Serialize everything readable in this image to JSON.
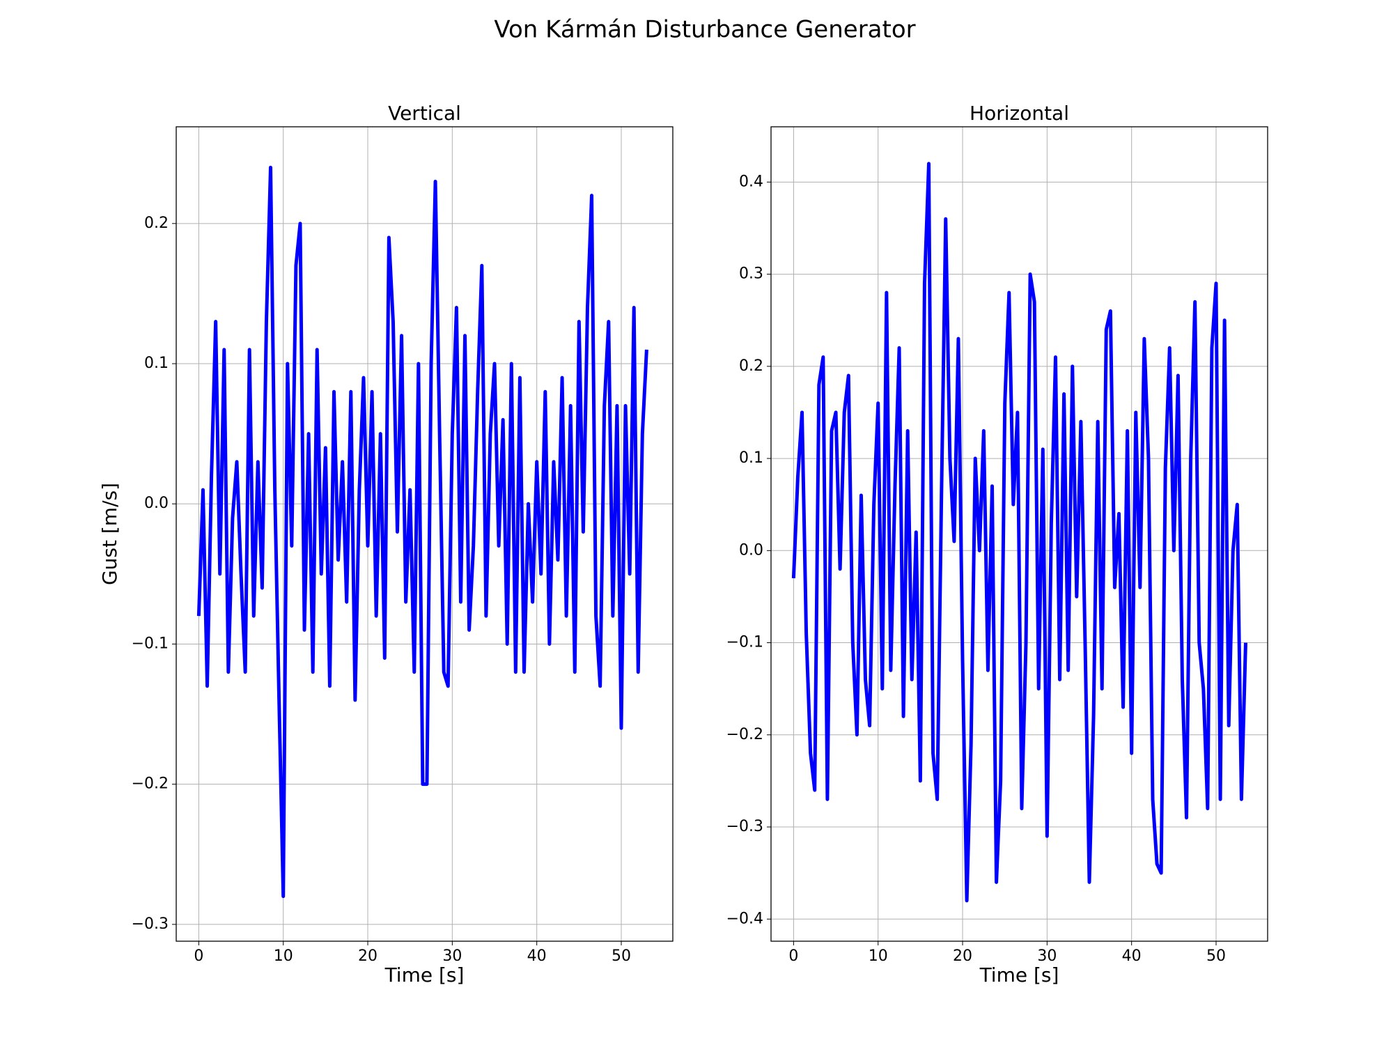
{
  "title": "Von Kármán Disturbance Generator",
  "chart_data": [
    {
      "type": "line",
      "title": "Vertical",
      "x_label": "Time [s]",
      "y_label": "Gust [m/s]",
      "grid": true,
      "xlim": [
        -2.67,
        56.1
      ],
      "xticks": [
        0,
        10,
        20,
        30,
        40,
        50
      ],
      "ylim": [
        -0.312,
        0.269
      ],
      "yticks": [
        {
          "value": -0.3,
          "label": "−0.3"
        },
        {
          "value": -0.2,
          "label": "−0.2"
        },
        {
          "value": -0.1,
          "label": "−0.1"
        },
        {
          "value": 0,
          "label": "0.0"
        },
        0.1,
        0.2
      ],
      "x": [
        0,
        0.5,
        1,
        1.5,
        2,
        2.5,
        3,
        3.5,
        4,
        4.5,
        5,
        5.5,
        6,
        6.5,
        7,
        7.5,
        8,
        8.5,
        9,
        9.5,
        10,
        10.5,
        11,
        11.5,
        12,
        12.5,
        13,
        13.5,
        14,
        14.5,
        15,
        15.5,
        16,
        16.5,
        17,
        17.5,
        18,
        18.5,
        19,
        19.5,
        20,
        20.5,
        21,
        21.5,
        22,
        22.5,
        23,
        23.5,
        24,
        24.5,
        25,
        25.5,
        26,
        26.5,
        27,
        27.5,
        28,
        28.5,
        29,
        29.5,
        30,
        30.5,
        31,
        31.5,
        32,
        32.5,
        33,
        33.5,
        34,
        34.5,
        35,
        35.5,
        36,
        36.5,
        37,
        37.5,
        38,
        38.5,
        39,
        39.5,
        40,
        40.5,
        41,
        41.5,
        42,
        42.5,
        43,
        43.5,
        44,
        44.5,
        45,
        45.5,
        46,
        46.5,
        47,
        47.5,
        48,
        48.5,
        49,
        49.5,
        50,
        50.5,
        51,
        51.5,
        52,
        52.5,
        53
      ],
      "series": [
        {
          "color": "#0000ff",
          "values": [
            -0.08,
            0.01,
            -0.13,
            0.02,
            0.13,
            -0.05,
            0.11,
            -0.12,
            -0.01,
            0.03,
            -0.05,
            -0.12,
            0.11,
            -0.08,
            0.03,
            -0.06,
            0.13,
            0.24,
            0.01,
            -0.14,
            -0.28,
            0.1,
            -0.03,
            0.17,
            0.2,
            -0.09,
            0.05,
            -0.12,
            0.11,
            -0.05,
            0.04,
            -0.13,
            0.08,
            -0.04,
            0.03,
            -0.07,
            0.08,
            -0.14,
            0.01,
            0.09,
            -0.03,
            0.08,
            -0.08,
            0.05,
            -0.11,
            0.19,
            0.13,
            -0.02,
            0.12,
            -0.07,
            0.01,
            -0.12,
            0.1,
            -0.2,
            -0.2,
            0.1,
            0.23,
            0.05,
            -0.12,
            -0.13,
            0.05,
            0.14,
            -0.07,
            0.12,
            -0.09,
            -0.03,
            0.08,
            0.17,
            -0.08,
            0.05,
            0.1,
            -0.03,
            0.06,
            -0.1,
            0.1,
            -0.12,
            0.09,
            -0.12,
            0.0,
            -0.07,
            0.03,
            -0.05,
            0.08,
            -0.1,
            0.03,
            -0.04,
            0.09,
            -0.08,
            0.07,
            -0.12,
            0.13,
            -0.02,
            0.14,
            0.22,
            -0.08,
            -0.13,
            0.07,
            0.13,
            -0.08,
            0.07,
            -0.16,
            0.07,
            -0.05,
            0.14,
            -0.12,
            0.05,
            0.11
          ]
        }
      ]
    },
    {
      "type": "line",
      "title": "Horizontal",
      "x_label": "Time [s]",
      "grid": true,
      "xlim": [
        -2.67,
        56.1
      ],
      "xticks": [
        0,
        10,
        20,
        30,
        40,
        50
      ],
      "ylim": [
        -0.424,
        0.46
      ],
      "yticks": [
        {
          "value": -0.4,
          "label": "−0.4"
        },
        {
          "value": -0.3,
          "label": "−0.3"
        },
        {
          "value": -0.2,
          "label": "−0.2"
        },
        {
          "value": -0.1,
          "label": "−0.1"
        },
        {
          "value": 0,
          "label": "0.0"
        },
        0.1,
        0.2,
        0.3,
        0.4
      ],
      "x": [
        0,
        0.5,
        1,
        1.5,
        2,
        2.5,
        3,
        3.5,
        4,
        4.5,
        5,
        5.5,
        6,
        6.5,
        7,
        7.5,
        8,
        8.5,
        9,
        9.5,
        10,
        10.5,
        11,
        11.5,
        12,
        12.5,
        13,
        13.5,
        14,
        14.5,
        15,
        15.5,
        16,
        16.5,
        17,
        17.5,
        18,
        18.5,
        19,
        19.5,
        20,
        20.5,
        21,
        21.5,
        22,
        22.5,
        23,
        23.5,
        24,
        24.5,
        25,
        25.5,
        26,
        26.5,
        27,
        27.5,
        28,
        28.5,
        29,
        29.5,
        30,
        30.5,
        31,
        31.5,
        32,
        32.5,
        33,
        33.5,
        34,
        34.5,
        35,
        35.5,
        36,
        36.5,
        37,
        37.5,
        38,
        38.5,
        39,
        39.5,
        40,
        40.5,
        41,
        41.5,
        42,
        42.5,
        43,
        43.5,
        44,
        44.5,
        45,
        45.5,
        46,
        46.5,
        47,
        47.5,
        48,
        48.5,
        49,
        49.5,
        50,
        50.5,
        51,
        51.5,
        52,
        52.5,
        53,
        53.5
      ],
      "series": [
        {
          "color": "#0000ff",
          "values": [
            -0.03,
            0.08,
            0.15,
            -0.09,
            -0.22,
            -0.26,
            0.18,
            0.21,
            -0.27,
            0.13,
            0.15,
            -0.02,
            0.15,
            0.19,
            -0.1,
            -0.2,
            0.06,
            -0.14,
            -0.19,
            0.05,
            0.16,
            -0.15,
            0.28,
            -0.13,
            0.07,
            0.22,
            -0.18,
            0.13,
            -0.14,
            0.02,
            -0.25,
            0.29,
            0.42,
            -0.22,
            -0.27,
            0.06,
            0.36,
            0.1,
            0.01,
            0.23,
            -0.12,
            -0.38,
            -0.21,
            0.1,
            0.0,
            0.13,
            -0.13,
            0.07,
            -0.36,
            -0.25,
            0.16,
            0.28,
            0.05,
            0.15,
            -0.28,
            -0.1,
            0.3,
            0.27,
            -0.15,
            0.11,
            -0.31,
            0.03,
            0.21,
            -0.14,
            0.17,
            -0.13,
            0.2,
            -0.05,
            0.14,
            -0.1,
            -0.36,
            -0.18,
            0.14,
            -0.15,
            0.24,
            0.26,
            -0.04,
            0.04,
            -0.17,
            0.13,
            -0.22,
            0.15,
            -0.04,
            0.23,
            0.1,
            -0.27,
            -0.34,
            -0.35,
            0.09,
            0.22,
            0.0,
            0.19,
            -0.14,
            -0.29,
            0.1,
            0.27,
            -0.1,
            -0.15,
            -0.28,
            0.22,
            0.29,
            -0.27,
            0.25,
            -0.19,
            0.0,
            0.05,
            -0.27,
            -0.1
          ]
        }
      ]
    }
  ]
}
